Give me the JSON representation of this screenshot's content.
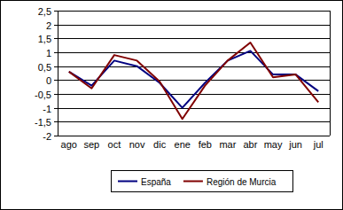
{
  "chart_data": {
    "type": "line",
    "categories": [
      "ago",
      "sep",
      "oct",
      "nov",
      "dic",
      "ene",
      "feb",
      "mar",
      "abr",
      "may",
      "jun",
      "jul"
    ],
    "series": [
      {
        "name": "España",
        "color": "#000080",
        "values": [
          0.3,
          -0.2,
          0.7,
          0.5,
          -0.1,
          -1.0,
          -0.1,
          0.7,
          1.05,
          0.2,
          0.2,
          -0.4
        ]
      },
      {
        "name": "Región de Murcia",
        "color": "#800000",
        "values": [
          0.3,
          -0.3,
          0.9,
          0.7,
          -0.05,
          -1.4,
          -0.2,
          0.7,
          1.35,
          0.1,
          0.2,
          -0.8
        ]
      }
    ],
    "ylim": [
      -2,
      2.5
    ],
    "yticks": [
      -2,
      {
        "value": -1.5,
        "label": "-1,5"
      },
      -1,
      {
        "value": -0.5,
        "label": "-0,5"
      },
      0,
      {
        "value": 0.5,
        "label": "0,5"
      },
      1,
      {
        "value": 1.5,
        "label": "1,5"
      },
      2,
      {
        "value": 2.5,
        "label": "2,5"
      }
    ],
    "grid": true,
    "legend": "bottom"
  }
}
